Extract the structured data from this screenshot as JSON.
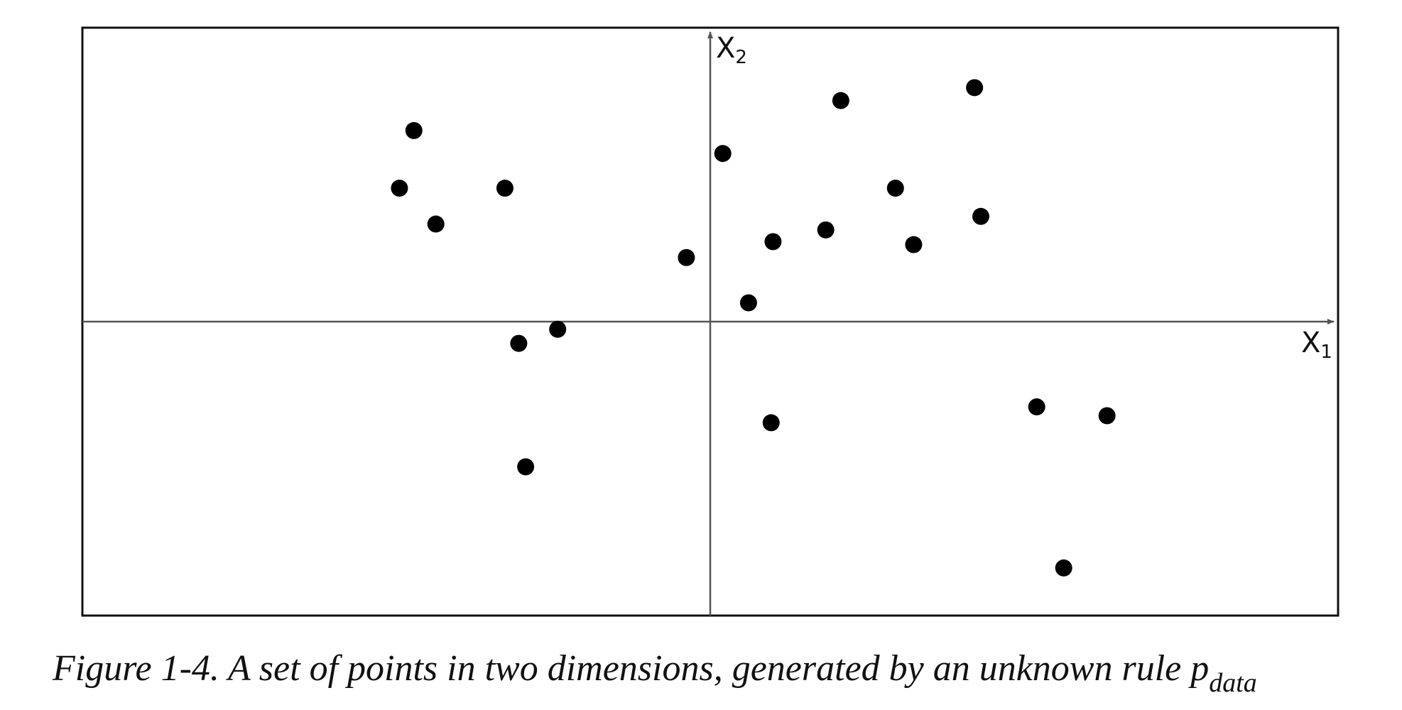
{
  "chart_data": {
    "type": "scatter",
    "title": "",
    "xlabel": "X",
    "xlabel_sub": "1",
    "ylabel": "X",
    "ylabel_sub": "2",
    "xlim": [
      -10,
      10
    ],
    "ylim": [
      -5,
      5
    ],
    "grid": false,
    "series": [
      {
        "points": [
          {
            "x": -4.72,
            "y": 3.25
          },
          {
            "x": -4.95,
            "y": 2.27
          },
          {
            "x": -4.37,
            "y": 1.66
          },
          {
            "x": -3.27,
            "y": 2.27
          },
          {
            "x": -3.05,
            "y": -0.37
          },
          {
            "x": -2.43,
            "y": -0.13
          },
          {
            "x": -2.94,
            "y": -2.47
          },
          {
            "x": -0.38,
            "y": 1.09
          },
          {
            "x": 0.2,
            "y": 2.86
          },
          {
            "x": 0.61,
            "y": 0.32
          },
          {
            "x": 1.0,
            "y": 1.36
          },
          {
            "x": 0.97,
            "y": -1.72
          },
          {
            "x": 1.84,
            "y": 1.56
          },
          {
            "x": 2.08,
            "y": 3.76
          },
          {
            "x": 2.95,
            "y": 2.27
          },
          {
            "x": 3.24,
            "y": 1.31
          },
          {
            "x": 4.21,
            "y": 3.98
          },
          {
            "x": 4.31,
            "y": 1.79
          },
          {
            "x": 5.2,
            "y": -1.45
          },
          {
            "x": 6.32,
            "y": -1.6
          },
          {
            "x": 5.63,
            "y": -4.19
          }
        ]
      }
    ],
    "colors": {
      "point": "#000000",
      "axis": "#555555",
      "frame": "#111111"
    }
  },
  "caption": {
    "text": "Figure 1-4. A set of points in two dimensions, generated by an unknown rule p",
    "subscript": "data"
  }
}
